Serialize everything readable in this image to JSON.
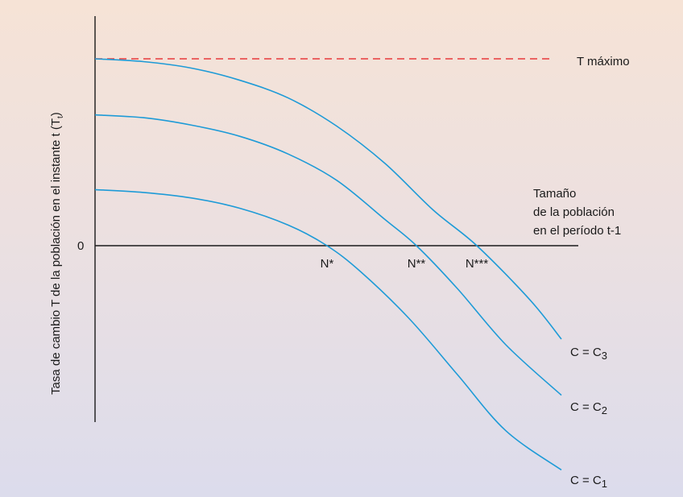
{
  "colors": {
    "curve": "#1e9bd7",
    "axis": "#1a1a1a",
    "max_line": "#e8393a"
  },
  "chart_data": {
    "type": "line",
    "title": "",
    "ylabel": "Tasa de cambio T de la población en el instante t (T",
    "ylabel_sub": "t",
    "ylabel_end": ")",
    "xlabel_lines": [
      "Tamaño",
      "de la población",
      "en el período t-1"
    ],
    "zero_label": "0",
    "max_line": {
      "label": "T máximo",
      "value": 1.0
    },
    "xlim": [
      0,
      1
    ],
    "ylim": [
      -1.2,
      1.15
    ],
    "equilibria": [
      {
        "label": "N*",
        "x": 0.48
      },
      {
        "label": "N**",
        "x": 0.665
      },
      {
        "label": "N***",
        "x": 0.79
      }
    ],
    "series": [
      {
        "name_main": "C = C",
        "name_sub": "3",
        "x": [
          0,
          0.1,
          0.2,
          0.3,
          0.4,
          0.5,
          0.6,
          0.7,
          0.79,
          0.9,
          0.965
        ],
        "y": [
          1.0,
          0.985,
          0.95,
          0.885,
          0.79,
          0.64,
          0.44,
          0.19,
          0.0,
          -0.29,
          -0.5
        ]
      },
      {
        "name_main": "C = C",
        "name_sub": "2",
        "x": [
          0,
          0.1,
          0.2,
          0.3,
          0.4,
          0.5,
          0.6,
          0.665,
          0.75,
          0.85,
          0.965
        ],
        "y": [
          0.7,
          0.685,
          0.645,
          0.585,
          0.49,
          0.35,
          0.14,
          0.0,
          -0.23,
          -0.53,
          -0.8
        ]
      },
      {
        "name_main": "C = C",
        "name_sub": "1",
        "x": [
          0,
          0.1,
          0.2,
          0.3,
          0.4,
          0.48,
          0.55,
          0.65,
          0.75,
          0.85,
          0.965
        ],
        "y": [
          0.3,
          0.285,
          0.255,
          0.2,
          0.11,
          0.0,
          -0.14,
          -0.39,
          -0.69,
          -0.99,
          -1.2
        ]
      }
    ]
  }
}
